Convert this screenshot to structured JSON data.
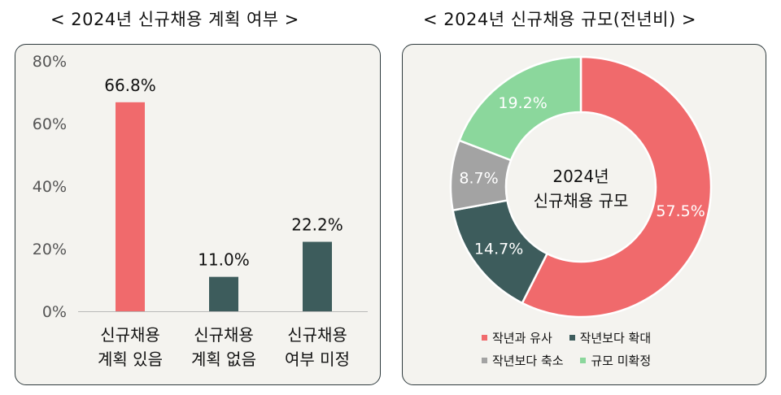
{
  "chart_data": [
    {
      "type": "bar",
      "title": "< 2024년 신규채용 계획 여부 >",
      "categories": [
        [
          "신규채용",
          "계획 있음"
        ],
        [
          "신규채용",
          "계획 없음"
        ],
        [
          "신규채용",
          "여부 미정"
        ]
      ],
      "values": [
        66.8,
        11.0,
        22.2
      ],
      "value_labels": [
        "66.8%",
        "11.0%",
        "22.2%"
      ],
      "colors": [
        "#f06a6c",
        "#3d5c5c",
        "#3d5c5c"
      ],
      "yticks": [
        "0%",
        "20%",
        "40%",
        "60%",
        "80%"
      ],
      "ylim": [
        0,
        80
      ],
      "grid": false
    },
    {
      "type": "pie",
      "donut": true,
      "title": "< 2024년 신규채용 규모(전년비) >",
      "center_label": [
        "2024년",
        "신규채용 규모"
      ],
      "slices": [
        {
          "label": "작년과 유사",
          "value": 57.5,
          "value_label": "57.5%",
          "color": "#f06a6c"
        },
        {
          "label": "작년보다 확대",
          "value": 14.7,
          "value_label": "14.7%",
          "color": "#3d5c5c"
        },
        {
          "label": "작년보다 축소",
          "value": 8.7,
          "value_label": "8.7%",
          "color": "#a3a3a3"
        },
        {
          "label": "규모 미확정",
          "value": 19.2,
          "value_label": "19.2%",
          "color": "#8bd79c"
        }
      ],
      "legend_position": "bottom"
    }
  ]
}
